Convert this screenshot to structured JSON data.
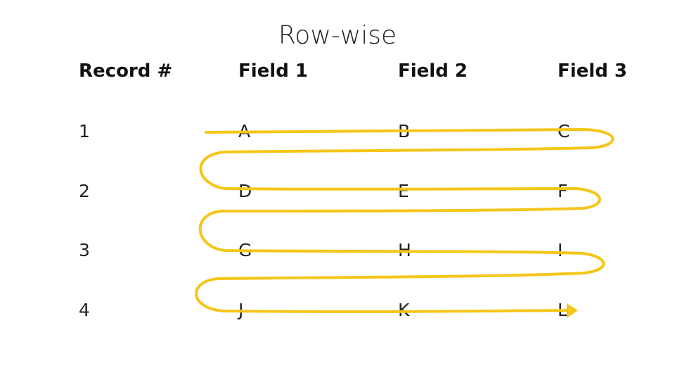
{
  "title": "Row-wise",
  "headers": [
    "Record #",
    "Field 1",
    "Field 2",
    "Field 3"
  ],
  "rows": [
    {
      "record": "1",
      "fields": [
        "A",
        "B",
        "C"
      ]
    },
    {
      "record": "2",
      "fields": [
        "D",
        "E",
        "F"
      ]
    },
    {
      "record": "3",
      "fields": [
        "G",
        "H",
        "I"
      ]
    },
    {
      "record": "4",
      "fields": [
        "J",
        "K",
        "L"
      ]
    }
  ],
  "path_color": "#F5C518"
}
